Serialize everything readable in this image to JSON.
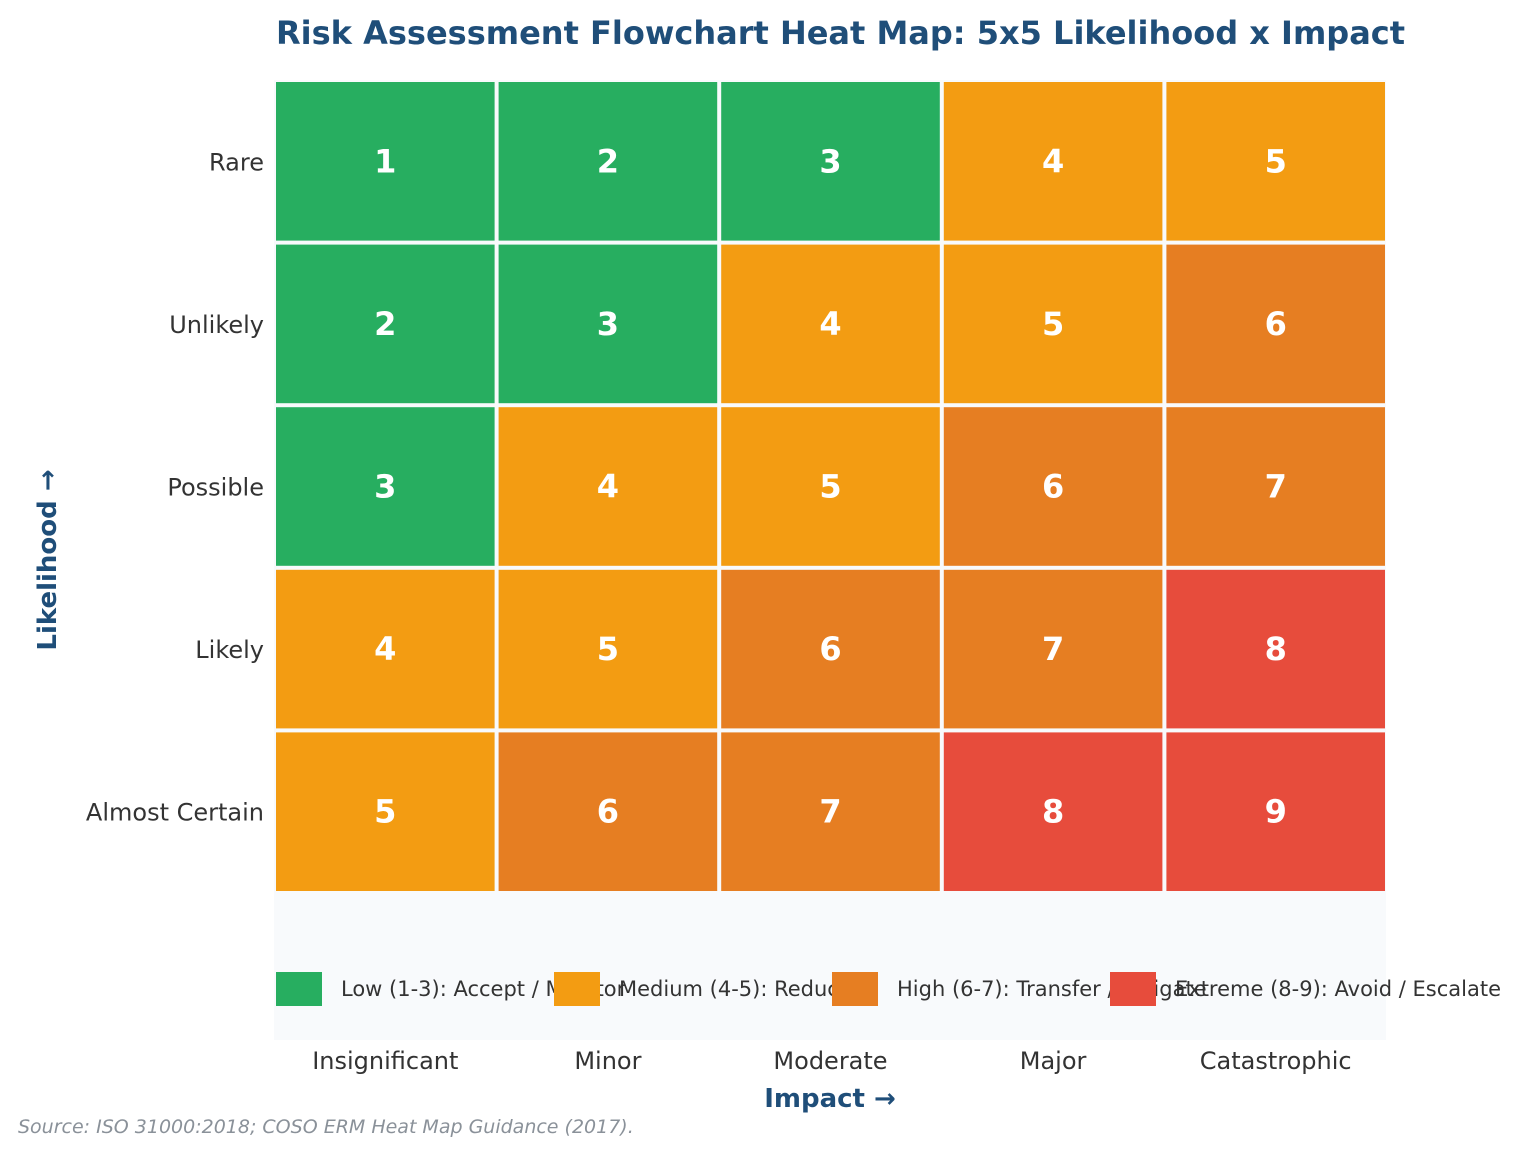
{
  "chart_data": {
    "type": "heatmap",
    "title": "Risk Assessment Flowchart Heat Map: 5x5 Likelihood x Impact",
    "xlabel": "Impact →",
    "ylabel": "Likelihood →",
    "x_categories": [
      "Insignificant",
      "Minor",
      "Moderate",
      "Major",
      "Catastrophic"
    ],
    "y_categories": [
      "Rare",
      "Unlikely",
      "Possible",
      "Likely",
      "Almost Certain"
    ],
    "values": [
      [
        1,
        2,
        3,
        4,
        5
      ],
      [
        2,
        3,
        4,
        5,
        6
      ],
      [
        3,
        4,
        5,
        6,
        7
      ],
      [
        4,
        5,
        6,
        7,
        8
      ],
      [
        5,
        6,
        7,
        8,
        9
      ]
    ],
    "bands": [
      {
        "label": "Low (1-3): Accept / Monitor",
        "min": 1,
        "max": 3,
        "color": "#27ae60"
      },
      {
        "label": "Medium (4-5): Reduce",
        "min": 4,
        "max": 5,
        "color": "#f39c12"
      },
      {
        "label": "High (6-7): Transfer / Mitigate",
        "min": 6,
        "max": 7,
        "color": "#e67e22"
      },
      {
        "label": "Extreme (8-9): Avoid / Escalate",
        "min": 8,
        "max": 9,
        "color": "#e74c3c"
      }
    ],
    "legend_position": "bottom",
    "source": "Source: ISO 31000:2018; COSO ERM Heat Map Guidance (2017)."
  }
}
